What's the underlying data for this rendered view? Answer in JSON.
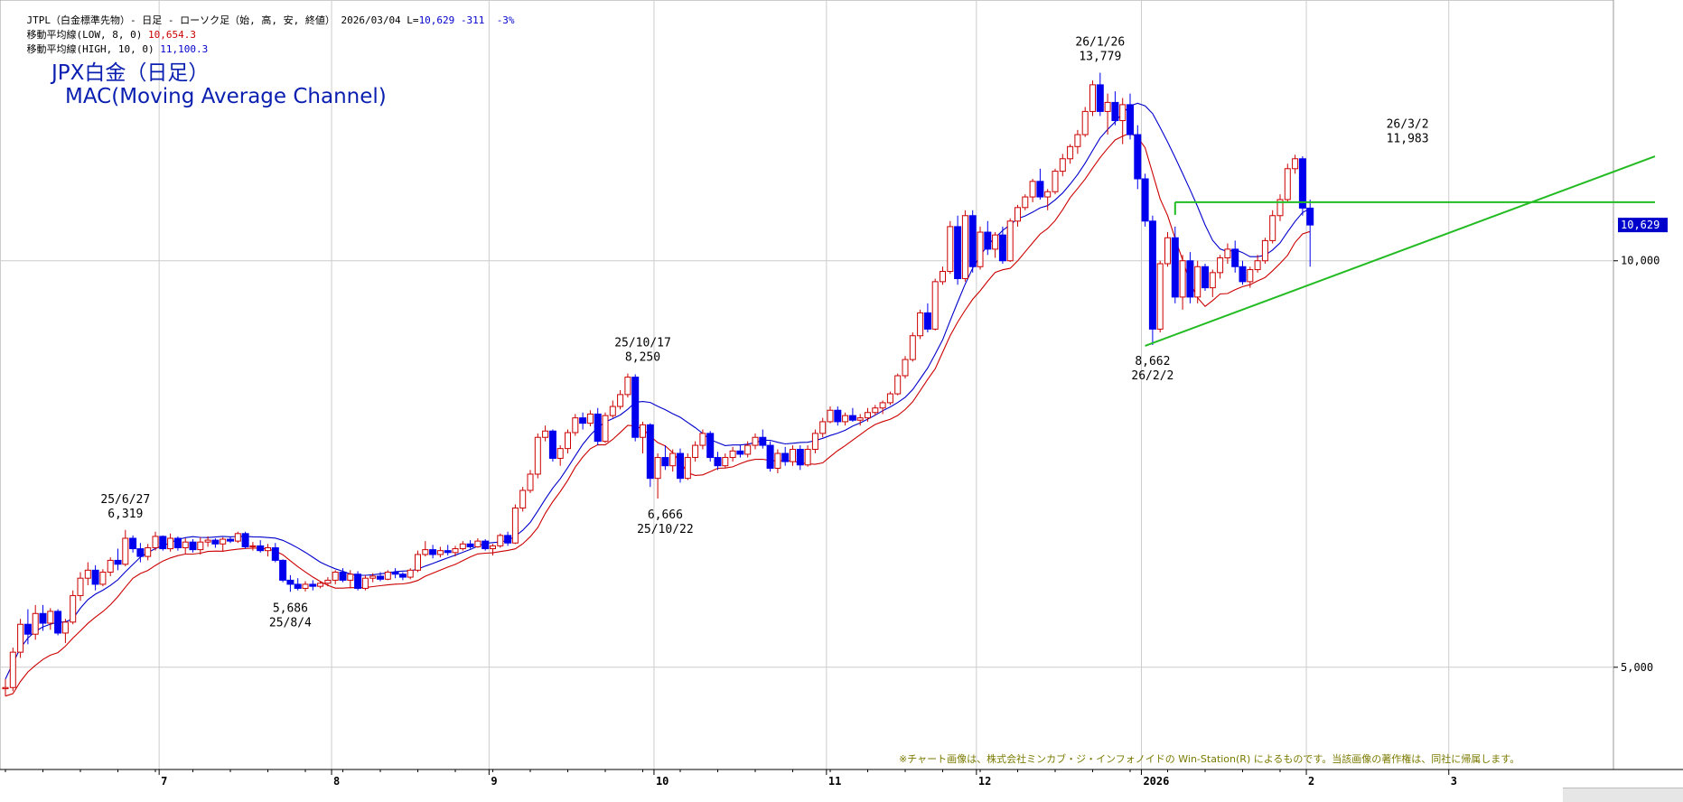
{
  "header": {
    "line1_a": "JTPL（白金標準先物）- 日足 - ローソク足（始, 高, 安, 終値） 2026/03/04 L=",
    "line1_price": "10,629",
    "line1_change": "-311",
    "line1_pct": "-3%",
    "line2_label": "移動平均線(LOW, 8, 0)",
    "line2_value": "10,654.3",
    "line3_label": "移動平均線(HIGH, 10, 0)",
    "line3_value": "11,100.3"
  },
  "title": {
    "line1": "JPX白金（日足）",
    "line2": "MAC(Moving Average Channel)"
  },
  "credit": "※チャート画像は、株式会社ミンカブ・ジ・インフォノイドの Win-Station(R) によるものです。当該画像の著作権は、同社に帰属します。",
  "colors": {
    "up_candle": "#cc0000",
    "down_candle": "#0000ee",
    "ma_low": "#cc0000",
    "ma_high": "#0000cc",
    "trendline": "#22bb22",
    "grid": "#cccccc",
    "last_price_bg": "#0000cc"
  },
  "chart_data": {
    "type": "candlestick",
    "y_scale": "log",
    "y_ticks": [
      {
        "value": 5000,
        "label": "5,000"
      },
      {
        "value": 10000,
        "label": "10,000"
      }
    ],
    "ylim": [
      4200,
      15600
    ],
    "last_price": {
      "value": 10629,
      "label": "10,629"
    },
    "x_months": [
      {
        "label": "7",
        "index": 21
      },
      {
        "label": "8",
        "index": 44
      },
      {
        "label": "9",
        "index": 65
      },
      {
        "label": "10",
        "index": 87
      },
      {
        "label": "11",
        "index": 110
      },
      {
        "label": "12",
        "index": 130
      },
      {
        "label": "2026",
        "index": 152
      },
      {
        "label": "2",
        "index": 174
      },
      {
        "label": "3",
        "index": 193
      }
    ],
    "candles": [
      [
        4820,
        4900,
        4760,
        4830
      ],
      [
        4830,
        5170,
        4800,
        5130
      ],
      [
        5130,
        5430,
        5080,
        5380
      ],
      [
        5380,
        5520,
        5200,
        5290
      ],
      [
        5290,
        5560,
        5240,
        5480
      ],
      [
        5480,
        5560,
        5320,
        5390
      ],
      [
        5390,
        5530,
        5330,
        5500
      ],
      [
        5500,
        5520,
        5280,
        5300
      ],
      [
        5300,
        5430,
        5210,
        5400
      ],
      [
        5400,
        5700,
        5380,
        5650
      ],
      [
        5650,
        5880,
        5600,
        5820
      ],
      [
        5820,
        5980,
        5750,
        5900
      ],
      [
        5900,
        5950,
        5700,
        5760
      ],
      [
        5760,
        5910,
        5740,
        5880
      ],
      [
        5880,
        6030,
        5840,
        6000
      ],
      [
        6000,
        6120,
        5900,
        5960
      ],
      [
        5960,
        6319,
        5940,
        6230
      ],
      [
        6230,
        6260,
        6080,
        6120
      ],
      [
        6120,
        6180,
        5980,
        6040
      ],
      [
        6040,
        6170,
        6000,
        6130
      ],
      [
        6130,
        6300,
        6100,
        6250
      ],
      [
        6250,
        6260,
        6100,
        6120
      ],
      [
        6120,
        6280,
        6090,
        6230
      ],
      [
        6230,
        6250,
        6100,
        6130
      ],
      [
        6130,
        6230,
        6060,
        6190
      ],
      [
        6190,
        6220,
        6080,
        6110
      ],
      [
        6110,
        6240,
        6060,
        6190
      ],
      [
        6190,
        6250,
        6140,
        6210
      ],
      [
        6210,
        6230,
        6130,
        6170
      ],
      [
        6170,
        6240,
        6090,
        6220
      ],
      [
        6220,
        6250,
        6180,
        6200
      ],
      [
        6200,
        6300,
        6180,
        6280
      ],
      [
        6280,
        6300,
        6120,
        6140
      ],
      [
        6140,
        6190,
        6100,
        6150
      ],
      [
        6150,
        6210,
        6080,
        6100
      ],
      [
        6100,
        6170,
        6040,
        6130
      ],
      [
        6130,
        6180,
        5980,
        6000
      ],
      [
        6000,
        6010,
        5780,
        5800
      ],
      [
        5800,
        5850,
        5686,
        5760
      ],
      [
        5760,
        5820,
        5700,
        5720
      ],
      [
        5720,
        5790,
        5690,
        5760
      ],
      [
        5760,
        5800,
        5700,
        5740
      ],
      [
        5740,
        5790,
        5720,
        5770
      ],
      [
        5770,
        5830,
        5740,
        5800
      ],
      [
        5800,
        5900,
        5760,
        5880
      ],
      [
        5880,
        5920,
        5780,
        5800
      ],
      [
        5800,
        5900,
        5720,
        5860
      ],
      [
        5860,
        5890,
        5700,
        5720
      ],
      [
        5720,
        5850,
        5700,
        5820
      ],
      [
        5820,
        5870,
        5780,
        5840
      ],
      [
        5840,
        5880,
        5790,
        5810
      ],
      [
        5810,
        5900,
        5800,
        5880
      ],
      [
        5880,
        5920,
        5820,
        5860
      ],
      [
        5860,
        5880,
        5800,
        5830
      ],
      [
        5830,
        5920,
        5810,
        5900
      ],
      [
        5900,
        6100,
        5880,
        6060
      ],
      [
        6060,
        6200,
        6040,
        6110
      ],
      [
        6110,
        6160,
        6020,
        6060
      ],
      [
        6060,
        6140,
        6030,
        6100
      ],
      [
        6100,
        6160,
        6050,
        6080
      ],
      [
        6080,
        6150,
        6040,
        6120
      ],
      [
        6120,
        6200,
        6100,
        6170
      ],
      [
        6170,
        6210,
        6120,
        6140
      ],
      [
        6140,
        6230,
        6130,
        6200
      ],
      [
        6200,
        6220,
        6100,
        6120
      ],
      [
        6120,
        6170,
        6050,
        6150
      ],
      [
        6150,
        6280,
        6130,
        6260
      ],
      [
        6260,
        6300,
        6150,
        6180
      ],
      [
        6180,
        6600,
        6170,
        6560
      ],
      [
        6560,
        6800,
        6520,
        6760
      ],
      [
        6760,
        7000,
        6730,
        6950
      ],
      [
        6950,
        7450,
        6900,
        7400
      ],
      [
        7400,
        7550,
        7350,
        7480
      ],
      [
        7480,
        7500,
        7100,
        7140
      ],
      [
        7140,
        7300,
        7050,
        7260
      ],
      [
        7260,
        7500,
        7200,
        7460
      ],
      [
        7460,
        7700,
        7420,
        7650
      ],
      [
        7650,
        7720,
        7500,
        7580
      ],
      [
        7580,
        7750,
        7540,
        7700
      ],
      [
        7700,
        7780,
        7300,
        7350
      ],
      [
        7350,
        7720,
        7330,
        7680
      ],
      [
        7680,
        7880,
        7650,
        7800
      ],
      [
        7800,
        8020,
        7760,
        7960
      ],
      [
        7960,
        8250,
        7920,
        8200
      ],
      [
        8200,
        8240,
        7350,
        7400
      ],
      [
        7400,
        7600,
        7200,
        7560
      ],
      [
        7560,
        7580,
        6800,
        6900
      ],
      [
        6900,
        7200,
        6666,
        7150
      ],
      [
        7150,
        7300,
        7000,
        7050
      ],
      [
        7050,
        7250,
        6980,
        7200
      ],
      [
        7200,
        7260,
        6850,
        6900
      ],
      [
        6900,
        7200,
        6880,
        7150
      ],
      [
        7150,
        7350,
        7100,
        7300
      ],
      [
        7300,
        7500,
        7250,
        7450
      ],
      [
        7450,
        7480,
        7100,
        7150
      ],
      [
        7150,
        7220,
        7000,
        7050
      ],
      [
        7050,
        7200,
        7020,
        7150
      ],
      [
        7150,
        7280,
        7100,
        7230
      ],
      [
        7230,
        7300,
        7150,
        7190
      ],
      [
        7190,
        7350,
        7150,
        7300
      ],
      [
        7300,
        7450,
        7250,
        7400
      ],
      [
        7400,
        7500,
        7260,
        7300
      ],
      [
        7300,
        7350,
        6980,
        7020
      ],
      [
        7020,
        7250,
        6960,
        7200
      ],
      [
        7200,
        7280,
        7050,
        7100
      ],
      [
        7100,
        7300,
        7050,
        7250
      ],
      [
        7250,
        7300,
        7000,
        7060
      ],
      [
        7060,
        7300,
        7040,
        7250
      ],
      [
        7250,
        7500,
        7200,
        7450
      ],
      [
        7450,
        7650,
        7400,
        7600
      ],
      [
        7600,
        7800,
        7580,
        7750
      ],
      [
        7750,
        7800,
        7550,
        7600
      ],
      [
        7600,
        7720,
        7550,
        7680
      ],
      [
        7680,
        7780,
        7600,
        7620
      ],
      [
        7620,
        7700,
        7550,
        7650
      ],
      [
        7650,
        7780,
        7600,
        7720
      ],
      [
        7720,
        7820,
        7680,
        7780
      ],
      [
        7780,
        7880,
        7700,
        7850
      ],
      [
        7850,
        8000,
        7820,
        7970
      ],
      [
        7970,
        8250,
        7950,
        8220
      ],
      [
        8220,
        8500,
        8180,
        8450
      ],
      [
        8450,
        8850,
        8420,
        8800
      ],
      [
        8800,
        9200,
        8750,
        9150
      ],
      [
        9150,
        9300,
        8850,
        8900
      ],
      [
        8900,
        9700,
        8880,
        9650
      ],
      [
        9650,
        9900,
        9600,
        9820
      ],
      [
        9820,
        10700,
        9780,
        10600
      ],
      [
        10600,
        10800,
        9600,
        9700
      ],
      [
        9700,
        10900,
        9650,
        10800
      ],
      [
        10800,
        10900,
        9800,
        9900
      ],
      [
        9900,
        10600,
        9850,
        10500
      ],
      [
        10500,
        10700,
        10100,
        10200
      ],
      [
        10200,
        10500,
        10050,
        10450
      ],
      [
        10450,
        10600,
        9950,
        10000
      ],
      [
        10000,
        10750,
        9980,
        10700
      ],
      [
        10700,
        11000,
        10600,
        10950
      ],
      [
        10950,
        11200,
        10900,
        11150
      ],
      [
        11150,
        11500,
        11050,
        11450
      ],
      [
        11450,
        11700,
        11100,
        11150
      ],
      [
        11150,
        11300,
        10900,
        11250
      ],
      [
        11250,
        11700,
        11200,
        11650
      ],
      [
        11650,
        12000,
        11550,
        11900
      ],
      [
        11900,
        12200,
        11800,
        12150
      ],
      [
        12150,
        12500,
        12000,
        12400
      ],
      [
        12400,
        13000,
        12350,
        12900
      ],
      [
        12900,
        13600,
        12800,
        13500
      ],
      [
        13500,
        13779,
        12800,
        12900
      ],
      [
        12900,
        13300,
        12400,
        13100
      ],
      [
        13100,
        13350,
        12600,
        12700
      ],
      [
        12700,
        13200,
        12200,
        13050
      ],
      [
        13050,
        13300,
        12300,
        12400
      ],
      [
        12400,
        12600,
        11300,
        11500
      ],
      [
        11500,
        11600,
        10600,
        10700
      ],
      [
        10700,
        10800,
        8662,
        8900
      ],
      [
        8900,
        10000,
        8850,
        9950
      ],
      [
        9950,
        10500,
        9900,
        10400
      ],
      [
        10400,
        10600,
        9300,
        9400
      ],
      [
        9400,
        10100,
        9200,
        10000
      ],
      [
        10000,
        10150,
        9300,
        9400
      ],
      [
        9400,
        10000,
        9300,
        9900
      ],
      [
        9900,
        9950,
        9500,
        9550
      ],
      [
        9550,
        9850,
        9400,
        9800
      ],
      [
        9800,
        10100,
        9700,
        10050
      ],
      [
        10050,
        10300,
        9950,
        10200
      ],
      [
        10200,
        10350,
        9800,
        9900
      ],
      [
        9900,
        10000,
        9600,
        9650
      ],
      [
        9650,
        9900,
        9550,
        9850
      ],
      [
        9850,
        10100,
        9800,
        10000
      ],
      [
        10000,
        10400,
        9950,
        10350
      ],
      [
        10350,
        10900,
        10300,
        10800
      ],
      [
        10800,
        11200,
        10700,
        11100
      ],
      [
        11100,
        11800,
        11050,
        11700
      ],
      [
        11700,
        11983,
        11600,
        11900
      ],
      [
        11900,
        11950,
        10800,
        10940
      ],
      [
        10940,
        11100,
        9900,
        10629
      ]
    ],
    "ma_low_label": "移動平均線(LOW, 8, 0)",
    "ma_high_label": "移動平均線(HIGH, 10, 0)",
    "annotations": [
      {
        "index": 16,
        "value": 6319,
        "date": "25/6/27",
        "price": "6,319",
        "pos": "above"
      },
      {
        "index": 38,
        "value": 5686,
        "date": "25/8/4",
        "price": "5,686",
        "pos": "below"
      },
      {
        "index": 85,
        "value": 8250,
        "date": "25/10/17",
        "price": "8,250",
        "pos": "above"
      },
      {
        "index": 88,
        "value": 6666,
        "date": "25/10/22",
        "price": "6,666",
        "pos": "below"
      },
      {
        "index": 146,
        "value": 13779,
        "date": "26/1/26",
        "price": "13,779",
        "pos": "above"
      },
      {
        "index": 153,
        "value": 8662,
        "date": "26/2/2",
        "price": "8,662",
        "pos": "below"
      },
      {
        "index": 187,
        "value": 11983,
        "date": "26/3/2",
        "price": "11,983",
        "pos": "above"
      }
    ],
    "lines": [
      {
        "kind": "horizontal",
        "from_index": 156,
        "to_index": 220,
        "value": 11050
      },
      {
        "kind": "trend",
        "from_index": 152,
        "from_value": 8650,
        "to_index": 220,
        "to_value": 11950
      }
    ]
  }
}
